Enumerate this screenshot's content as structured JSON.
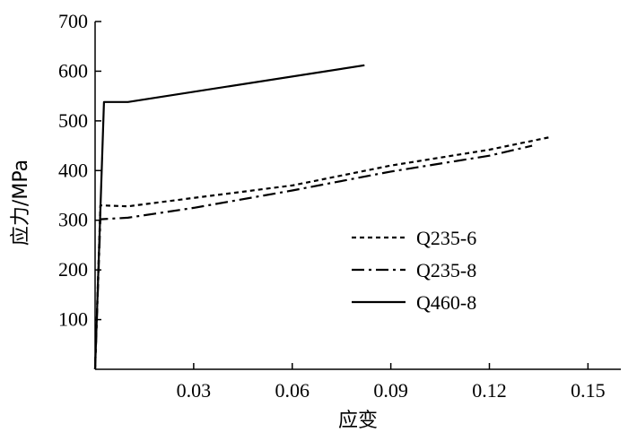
{
  "chart_data": {
    "type": "line",
    "xlabel": "应变",
    "ylabel": "应力/MPa",
    "xlim": [
      0,
      0.16
    ],
    "ylim": [
      0,
      700
    ],
    "x_ticks": [
      0.03,
      0.06,
      0.09,
      0.12,
      0.15
    ],
    "x_tick_labels": [
      "0.03",
      "0.06",
      "0.09",
      "0.12",
      "0.15"
    ],
    "y_ticks": [
      100,
      200,
      300,
      400,
      500,
      600,
      700
    ],
    "y_tick_labels": [
      "100",
      "200",
      "300",
      "400",
      "500",
      "600",
      "700"
    ],
    "grid": false,
    "legend_position": "center-right",
    "series": [
      {
        "name": "Q235-6",
        "dash": "dashed",
        "color": "#000000",
        "points": [
          [
            0,
            0
          ],
          [
            0.0016,
            330
          ],
          [
            0.01,
            328
          ],
          [
            0.03,
            345
          ],
          [
            0.06,
            370
          ],
          [
            0.09,
            410
          ],
          [
            0.12,
            442
          ],
          [
            0.139,
            468
          ]
        ]
      },
      {
        "name": "Q235-8",
        "dash": "dashdot",
        "color": "#000000",
        "points": [
          [
            0,
            0
          ],
          [
            0.0016,
            302
          ],
          [
            0.01,
            305
          ],
          [
            0.03,
            325
          ],
          [
            0.06,
            360
          ],
          [
            0.09,
            398
          ],
          [
            0.12,
            430
          ],
          [
            0.133,
            450
          ]
        ]
      },
      {
        "name": "Q460-8",
        "dash": "solid",
        "color": "#000000",
        "points": [
          [
            0,
            0
          ],
          [
            0.0027,
            538
          ],
          [
            0.01,
            538
          ],
          [
            0.082,
            612
          ]
        ]
      }
    ]
  }
}
